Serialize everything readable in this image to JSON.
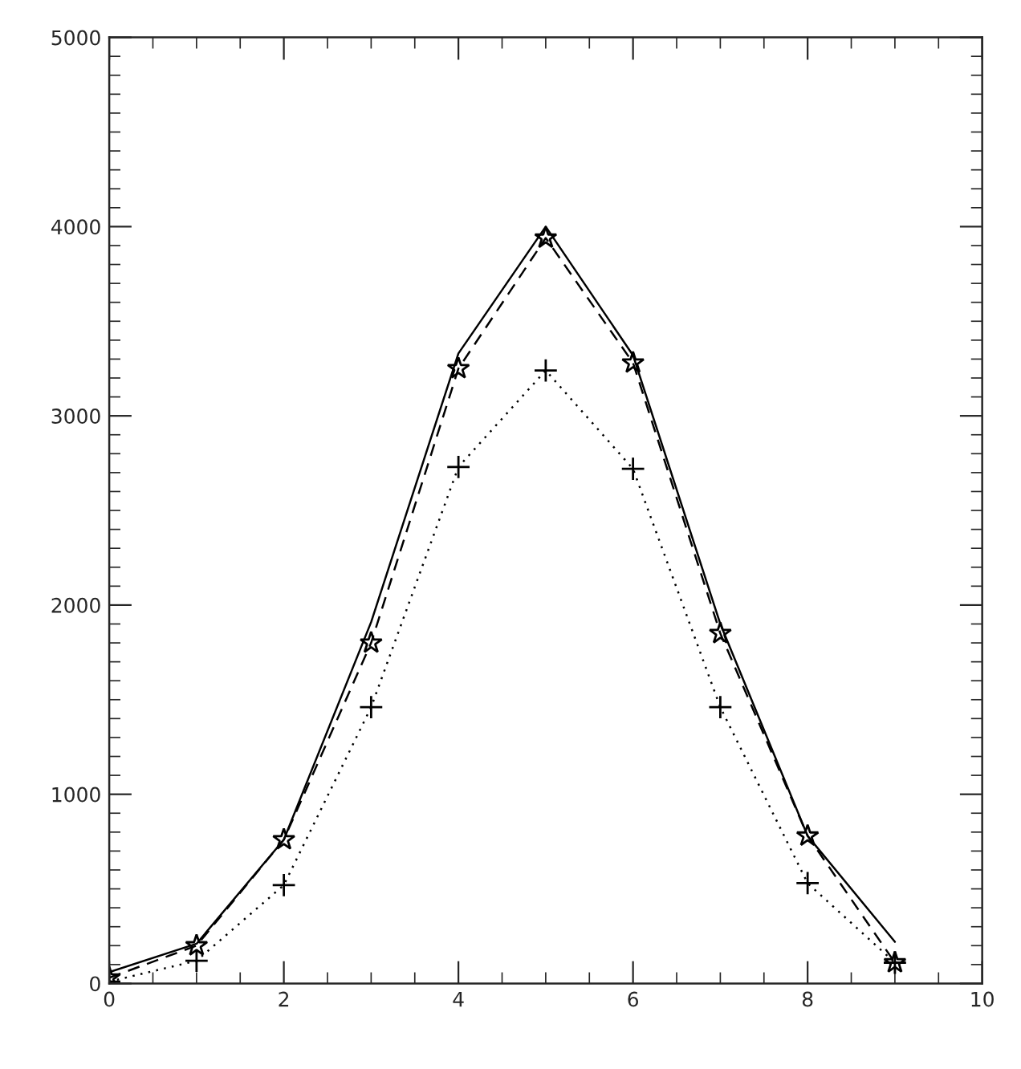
{
  "chart_data": {
    "type": "line",
    "x": [
      0,
      1,
      2,
      3,
      4,
      5,
      6,
      7,
      8,
      9
    ],
    "series": [
      {
        "color": "#000000",
        "line_style": "solid",
        "marker": "none",
        "values": [
          60,
          210,
          760,
          1910,
          3330,
          4000,
          3320,
          1900,
          780,
          220
        ]
      },
      {
        "color": "#000000",
        "line_style": "dashed",
        "marker": "star",
        "values": [
          30,
          200,
          760,
          1800,
          3250,
          3940,
          3280,
          1850,
          780,
          110
        ]
      },
      {
        "color": "#000000",
        "line_style": "dotted",
        "marker": "cross",
        "values": [
          10,
          120,
          520,
          1460,
          2730,
          3240,
          2720,
          1460,
          530,
          110
        ]
      }
    ],
    "xlim": [
      0,
      10
    ],
    "xticks": [
      0,
      2,
      4,
      6,
      8,
      10
    ],
    "ylim": [
      0,
      5000
    ],
    "yticks": [
      0,
      1000,
      2000,
      3000,
      4000,
      5000
    ],
    "grid": false
  }
}
